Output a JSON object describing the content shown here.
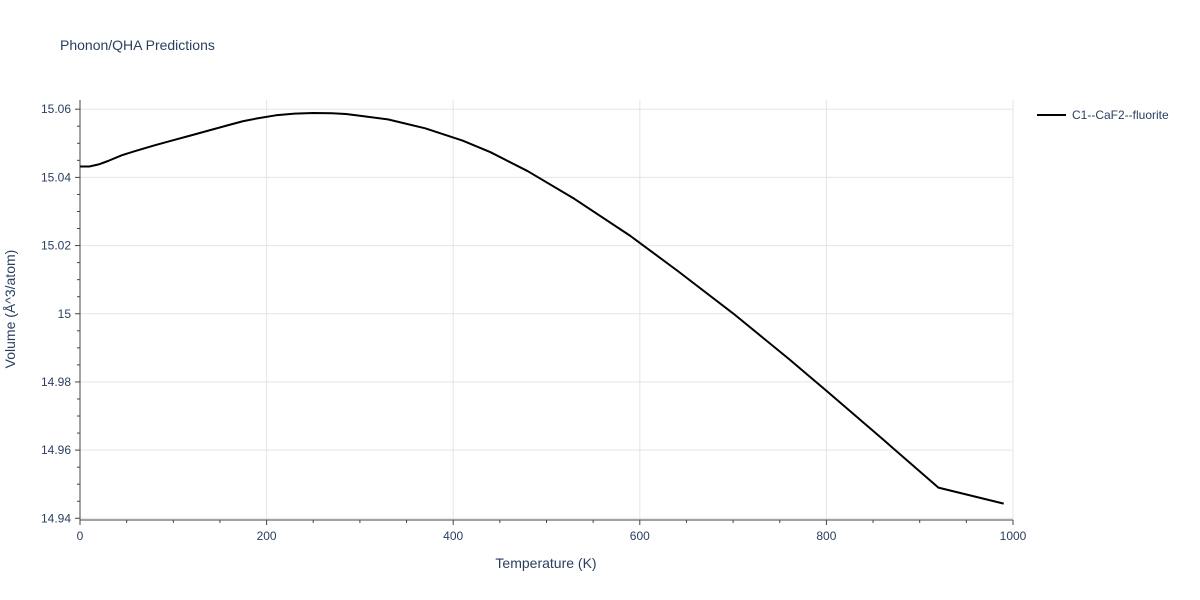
{
  "chart_data": {
    "type": "line",
    "title": "Phonon/QHA Predictions",
    "xlabel": "Temperature (K)",
    "ylabel": "Volume (Å^3/atom)",
    "xlim": [
      0,
      1000
    ],
    "ylim": [
      14.9395,
      15.0627
    ],
    "x_ticks": [
      0,
      200,
      400,
      600,
      800,
      1000
    ],
    "x_tick_labels": [
      "0",
      "200",
      "400",
      "600",
      "800",
      "1000"
    ],
    "y_ticks": [
      14.94,
      14.96,
      14.98,
      15.0,
      15.02,
      15.04,
      15.06
    ],
    "y_tick_labels": [
      "14.94",
      "14.96",
      "14.98",
      "15",
      "15.02",
      "15.04",
      "15.06"
    ],
    "grid": true,
    "legend_position": "top-right",
    "series": [
      {
        "name": "C1--CaF2--fluorite",
        "color": "#000000",
        "x": [
          0,
          10,
          20,
          30,
          45,
          60,
          80,
          100,
          120,
          140,
          160,
          175,
          190,
          210,
          230,
          250,
          270,
          285,
          300,
          330,
          370,
          410,
          440,
          480,
          530,
          590,
          640,
          700,
          760,
          800,
          860,
          920,
          990
        ],
        "y": [
          15.0432,
          15.0432,
          15.0438,
          15.0448,
          15.0465,
          15.0478,
          15.0494,
          15.0509,
          15.0524,
          15.0539,
          15.0554,
          15.0565,
          15.0573,
          15.0582,
          15.0587,
          15.0589,
          15.0588,
          15.0586,
          15.0581,
          15.057,
          15.0544,
          15.0508,
          15.0474,
          15.0418,
          15.0337,
          15.0228,
          15.0127,
          15.0001,
          14.9867,
          14.9774,
          14.9633,
          14.949,
          14.9443
        ]
      }
    ]
  }
}
